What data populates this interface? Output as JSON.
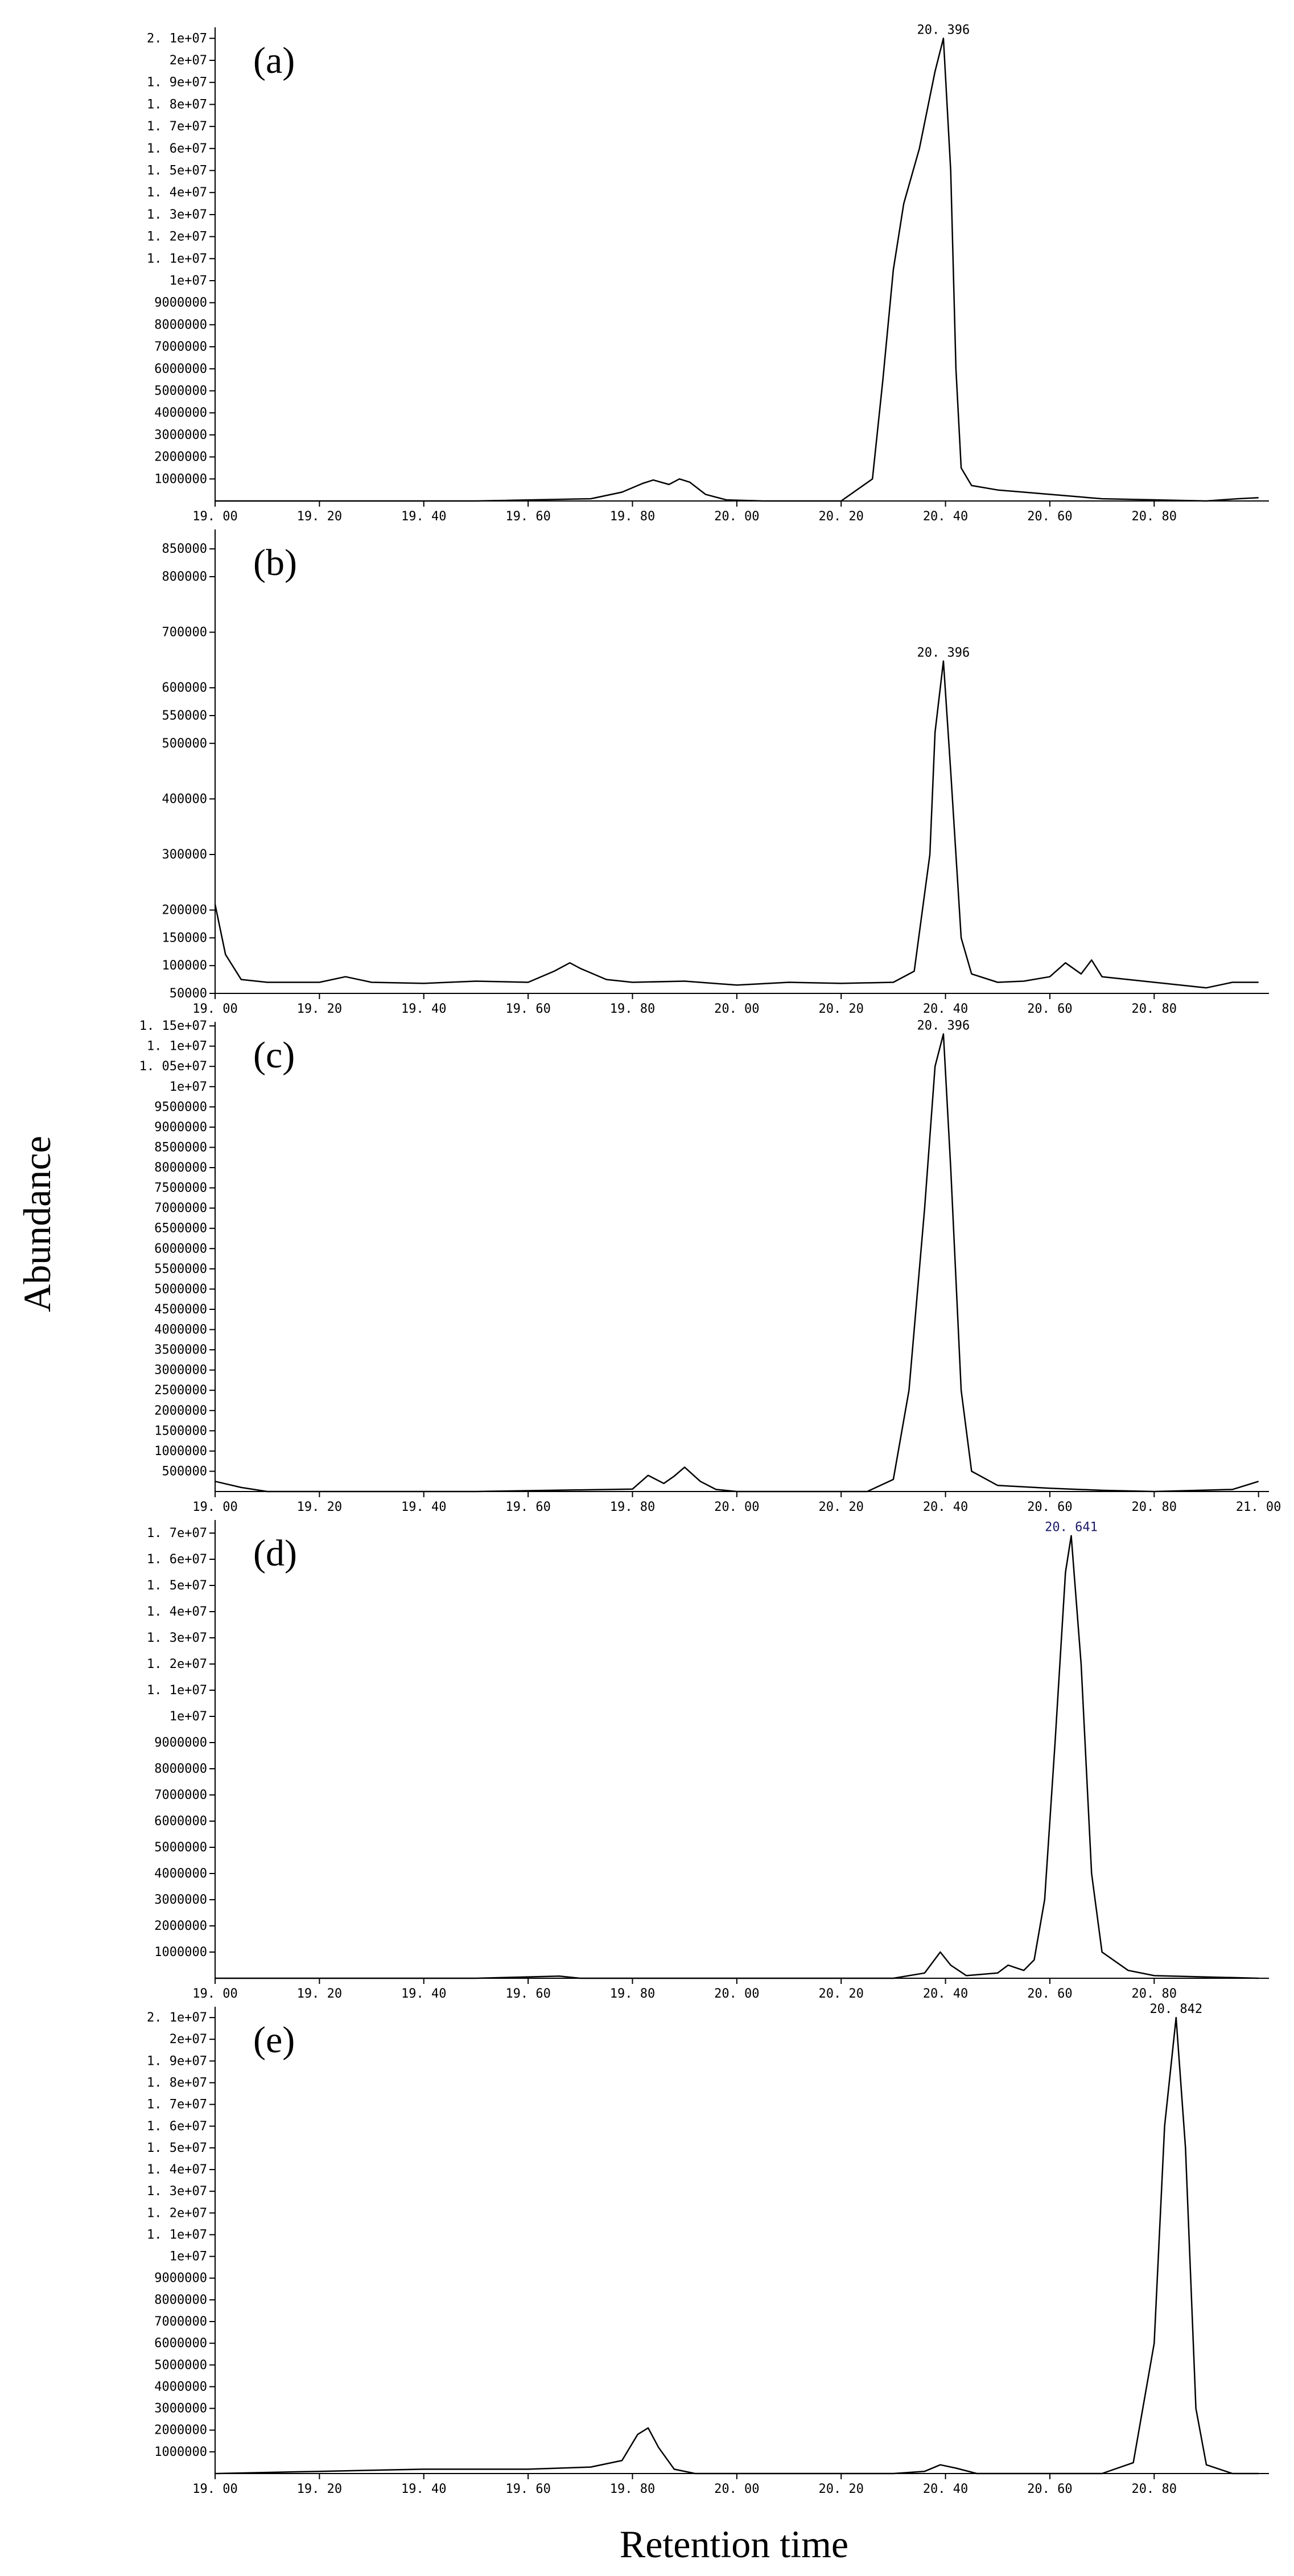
{
  "figure": {
    "ylabel": "Abundance",
    "xlabel": "Retention time"
  },
  "chart_data": [
    {
      "type": "line",
      "panel": "(a)",
      "xlim": [
        19.0,
        21.02
      ],
      "ylim": [
        0,
        21500000
      ],
      "x_ticks": [
        19.0,
        19.2,
        19.4,
        19.6,
        19.8,
        20.0,
        20.2,
        20.4,
        20.6,
        20.8
      ],
      "x_tick_labels": [
        "19.00",
        "19.20",
        "19.40",
        "19.60",
        "19.80",
        "20.00",
        "20.20",
        "20.40",
        "20.60",
        "20.80"
      ],
      "y_ticks": [
        1000000,
        2000000,
        3000000,
        4000000,
        5000000,
        6000000,
        7000000,
        8000000,
        9000000,
        10000000,
        11000000,
        12000000,
        13000000,
        14000000,
        15000000,
        16000000,
        17000000,
        18000000,
        19000000,
        20000000,
        21000000
      ],
      "y_tick_labels": [
        "1000000",
        "2000000",
        "3000000",
        "4000000",
        "5000000",
        "6000000",
        "7000000",
        "8000000",
        "9000000",
        "1e+07",
        "1.1e+07",
        "1.2e+07",
        "1.3e+07",
        "1.4e+07",
        "1.5e+07",
        "1.6e+07",
        "1.7e+07",
        "1.8e+07",
        "1.9e+07",
        "2e+07",
        "2.1e+07"
      ],
      "peak_label": {
        "text": "20.396",
        "x": 20.396,
        "y": 21000000,
        "color": "#000000"
      },
      "x": [
        19.0,
        19.5,
        19.72,
        19.78,
        19.82,
        19.84,
        19.87,
        19.89,
        19.91,
        19.94,
        19.98,
        20.05,
        20.2,
        20.26,
        20.28,
        20.3,
        20.32,
        20.35,
        20.38,
        20.396,
        20.41,
        20.42,
        20.43,
        20.45,
        20.5,
        20.6,
        20.7,
        20.9,
        20.96,
        21.0
      ],
      "y": [
        0,
        0,
        100000,
        400000,
        800000,
        950000,
        750000,
        1000000,
        850000,
        300000,
        50000,
        0,
        0,
        1000000,
        5500000,
        10500000,
        13500000,
        16000000,
        19500000,
        21000000,
        15000000,
        6000000,
        1500000,
        700000,
        500000,
        300000,
        100000,
        0,
        100000,
        150000
      ]
    },
    {
      "type": "line",
      "panel": "(b)",
      "xlim": [
        19.0,
        21.02
      ],
      "ylim": [
        50000,
        885000
      ],
      "x_ticks": [
        19.0,
        19.2,
        19.4,
        19.6,
        19.8,
        20.0,
        20.2,
        20.4,
        20.6,
        20.8
      ],
      "x_tick_labels": [
        "19.00",
        "19.20",
        "19.40",
        "19.60",
        "19.80",
        "20.00",
        "20.20",
        "20.40",
        "20.60",
        "20.80"
      ],
      "y_ticks": [
        50000,
        100000,
        150000,
        200000,
        300000,
        400000,
        500000,
        550000,
        600000,
        700000,
        800000,
        850000
      ],
      "y_tick_labels": [
        "50000",
        "100000",
        "150000",
        "200000",
        "300000",
        "400000",
        "500000",
        "550000",
        "600000",
        "700000",
        "800000",
        "850000"
      ],
      "peak_label": {
        "text": "20.396",
        "x": 20.396,
        "y": 648000,
        "color": "#000000"
      },
      "x": [
        19.0,
        19.02,
        19.05,
        19.1,
        19.2,
        19.25,
        19.3,
        19.4,
        19.5,
        19.6,
        19.65,
        19.68,
        19.7,
        19.75,
        19.8,
        19.9,
        20.0,
        20.1,
        20.2,
        20.3,
        20.34,
        20.37,
        20.38,
        20.396,
        20.41,
        20.43,
        20.45,
        20.5,
        20.55,
        20.6,
        20.63,
        20.66,
        20.68,
        20.7,
        20.8,
        20.9,
        20.95,
        21.0
      ],
      "y": [
        210000,
        120000,
        75000,
        70000,
        70000,
        80000,
        70000,
        68000,
        72000,
        70000,
        90000,
        105000,
        95000,
        75000,
        70000,
        72000,
        65000,
        70000,
        68000,
        70000,
        90000,
        300000,
        520000,
        648000,
        450000,
        150000,
        85000,
        70000,
        72000,
        80000,
        105000,
        85000,
        110000,
        80000,
        70000,
        60000,
        70000,
        70000
      ]
    },
    {
      "type": "line",
      "panel": "(c)",
      "xlim": [
        19.0,
        21.02
      ],
      "ylim": [
        0,
        11600000
      ],
      "x_ticks": [
        19.0,
        19.2,
        19.4,
        19.6,
        19.8,
        20.0,
        20.2,
        20.4,
        20.6,
        20.8,
        21.0
      ],
      "x_tick_labels": [
        "19.00",
        "19.20",
        "19.40",
        "19.60",
        "19.80",
        "20.00",
        "20.20",
        "20.40",
        "20.60",
        "20.80",
        "21.00"
      ],
      "y_ticks": [
        500000,
        1000000,
        1500000,
        2000000,
        2500000,
        3000000,
        3500000,
        4000000,
        4500000,
        5000000,
        5500000,
        6000000,
        6500000,
        7000000,
        7500000,
        8000000,
        8500000,
        9000000,
        9500000,
        10000000,
        10500000,
        11000000,
        11500000
      ],
      "y_tick_labels": [
        "500000",
        "1000000",
        "1500000",
        "2000000",
        "2500000",
        "3000000",
        "3500000",
        "4000000",
        "4500000",
        "5000000",
        "5500000",
        "6000000",
        "6500000",
        "7000000",
        "7500000",
        "8000000",
        "8500000",
        "9000000",
        "9500000",
        "1e+07",
        "1.05e+07",
        "1.1e+07",
        "1.15e+07"
      ],
      "peak_label": {
        "text": "20.396",
        "x": 20.396,
        "y": 11300000,
        "color": "#000000"
      },
      "x": [
        19.0,
        19.05,
        19.1,
        19.5,
        19.8,
        19.83,
        19.86,
        19.88,
        19.9,
        19.93,
        19.96,
        20.0,
        20.25,
        20.3,
        20.33,
        20.36,
        20.38,
        20.396,
        20.41,
        20.43,
        20.45,
        20.5,
        20.6,
        20.7,
        20.8,
        20.95,
        21.0
      ],
      "y": [
        250000,
        100000,
        0,
        0,
        60000,
        400000,
        200000,
        380000,
        600000,
        250000,
        50000,
        0,
        0,
        300000,
        2500000,
        7000000,
        10500000,
        11300000,
        8000000,
        2500000,
        500000,
        150000,
        80000,
        30000,
        0,
        50000,
        250000
      ]
    },
    {
      "type": "line",
      "panel": "(d)",
      "xlim": [
        19.0,
        21.02
      ],
      "ylim": [
        0,
        17500000
      ],
      "x_ticks": [
        19.0,
        19.2,
        19.4,
        19.6,
        19.8,
        20.0,
        20.2,
        20.4,
        20.6,
        20.8
      ],
      "x_tick_labels": [
        "19.00",
        "19.20",
        "19.40",
        "19.60",
        "19.80",
        "20.00",
        "20.20",
        "20.40",
        "20.60",
        "20.80"
      ],
      "y_ticks": [
        1000000,
        2000000,
        3000000,
        4000000,
        5000000,
        6000000,
        7000000,
        8000000,
        9000000,
        10000000,
        11000000,
        12000000,
        13000000,
        14000000,
        15000000,
        16000000,
        17000000
      ],
      "y_tick_labels": [
        "1000000",
        "2000000",
        "3000000",
        "4000000",
        "5000000",
        "6000000",
        "7000000",
        "8000000",
        "9000000",
        "1e+07",
        "1.1e+07",
        "1.2e+07",
        "1.3e+07",
        "1.4e+07",
        "1.5e+07",
        "1.6e+07",
        "1.7e+07"
      ],
      "peak_label": {
        "text": "20.641",
        "x": 20.641,
        "y": 16900000,
        "color": "#1a1a66"
      },
      "x": [
        19.0,
        19.5,
        19.66,
        19.7,
        20.0,
        20.3,
        20.36,
        20.39,
        20.41,
        20.44,
        20.5,
        20.52,
        20.55,
        20.57,
        20.59,
        20.61,
        20.63,
        20.641,
        20.66,
        20.68,
        20.7,
        20.75,
        20.8,
        20.9,
        21.0
      ],
      "y": [
        0,
        0,
        80000,
        0,
        0,
        0,
        200000,
        1000000,
        500000,
        100000,
        200000,
        500000,
        300000,
        700000,
        3000000,
        9000000,
        15500000,
        16900000,
        12000000,
        4000000,
        1000000,
        300000,
        100000,
        50000,
        0
      ]
    },
    {
      "type": "line",
      "panel": "(e)",
      "xlim": [
        19.0,
        21.02
      ],
      "ylim": [
        0,
        21500000
      ],
      "x_ticks": [
        19.0,
        19.2,
        19.4,
        19.6,
        19.8,
        20.0,
        20.2,
        20.4,
        20.6,
        20.8
      ],
      "x_tick_labels": [
        "19.00",
        "19.20",
        "19.40",
        "19.60",
        "19.80",
        "20.00",
        "20.20",
        "20.40",
        "20.60",
        "20.80"
      ],
      "y_ticks": [
        1000000,
        2000000,
        3000000,
        4000000,
        5000000,
        6000000,
        7000000,
        8000000,
        9000000,
        10000000,
        11000000,
        12000000,
        13000000,
        14000000,
        15000000,
        16000000,
        17000000,
        18000000,
        19000000,
        20000000,
        21000000
      ],
      "y_tick_labels": [
        "1000000",
        "2000000",
        "3000000",
        "4000000",
        "5000000",
        "6000000",
        "7000000",
        "8000000",
        "9000000",
        "1e+07",
        "1.1e+07",
        "1.2e+07",
        "1.3e+07",
        "1.4e+07",
        "1.5e+07",
        "1.6e+07",
        "1.7e+07",
        "1.8e+07",
        "1.9e+07",
        "2e+07",
        "2.1e+07"
      ],
      "peak_label": {
        "text": "20.842",
        "x": 20.842,
        "y": 21000000,
        "color": "#000000"
      },
      "x": [
        19.0,
        19.2,
        19.4,
        19.6,
        19.72,
        19.78,
        19.81,
        19.83,
        19.85,
        19.88,
        19.92,
        20.3,
        20.36,
        20.39,
        20.42,
        20.46,
        20.7,
        20.76,
        20.8,
        20.82,
        20.842,
        20.86,
        20.88,
        20.9,
        20.95,
        21.0
      ],
      "y": [
        0,
        100000,
        200000,
        200000,
        300000,
        600000,
        1800000,
        2100000,
        1200000,
        200000,
        0,
        0,
        100000,
        400000,
        250000,
        0,
        0,
        500000,
        6000000,
        16000000,
        21000000,
        15000000,
        3000000,
        400000,
        0,
        0
      ]
    }
  ]
}
